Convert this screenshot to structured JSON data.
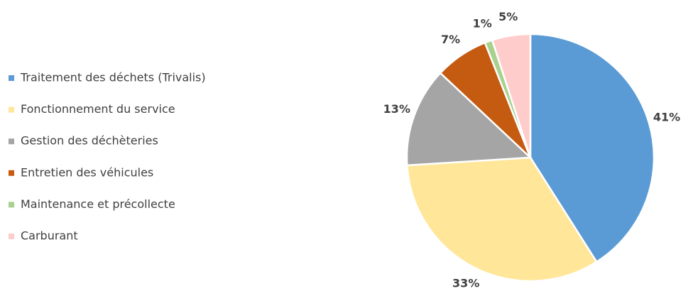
{
  "chart_data": {
    "type": "pie",
    "categories": [
      "Traitement des déchets (Trivalis)",
      "Fonctionnement du service",
      "Gestion des déchèteries",
      "Entretien des véhicules",
      "Maintenance et précollecte",
      "Carburant"
    ],
    "values": [
      41,
      33,
      13,
      7,
      1,
      5
    ],
    "value_labels": [
      "41%",
      "33%",
      "13%",
      "7%",
      "1%",
      "5%"
    ],
    "colors": [
      "#5b9bd5",
      "#ffe699",
      "#a5a5a5",
      "#c55a11",
      "#a9d18e",
      "#ffcccc"
    ]
  }
}
